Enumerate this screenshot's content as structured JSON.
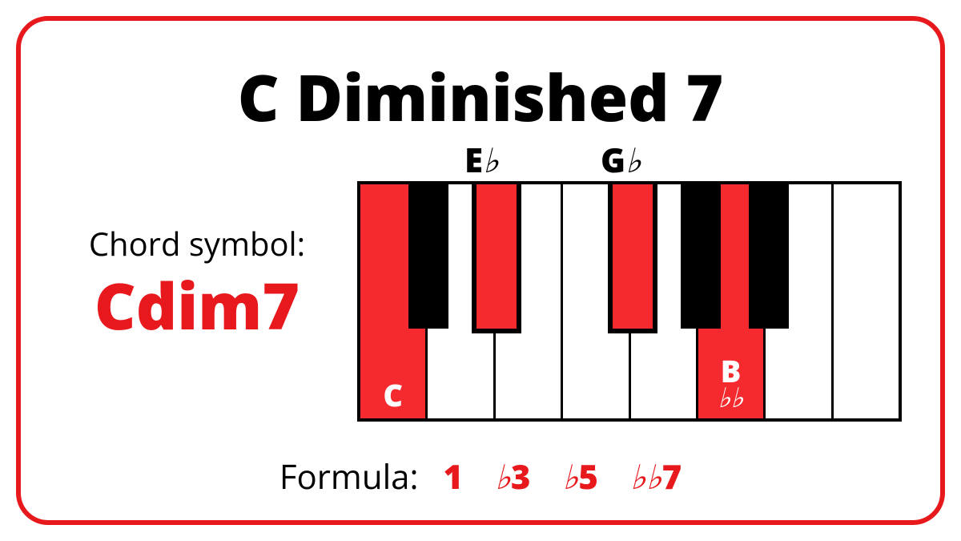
{
  "colors": {
    "accent": "#e7191d",
    "highlight": "#f42a2e",
    "black": "#000000",
    "white": "#ffffff"
  },
  "card": {
    "border_width": 6,
    "border_radius": 40
  },
  "title": "C Diminished 7",
  "chord_symbol": {
    "label": "Chord symbol:",
    "value": "Cdim7"
  },
  "keyboard": {
    "white_keys": [
      {
        "note": "C",
        "highlighted": true,
        "label": "C",
        "sub": ""
      },
      {
        "note": "D",
        "highlighted": false,
        "label": "",
        "sub": ""
      },
      {
        "note": "E",
        "highlighted": false,
        "label": "",
        "sub": ""
      },
      {
        "note": "F",
        "highlighted": false,
        "label": "",
        "sub": ""
      },
      {
        "note": "G",
        "highlighted": false,
        "label": "",
        "sub": ""
      },
      {
        "note": "A",
        "highlighted": true,
        "label": "B",
        "sub": "♭♭"
      },
      {
        "note": "B",
        "highlighted": false,
        "label": "",
        "sub": ""
      },
      {
        "note": "C2",
        "highlighted": false,
        "label": "",
        "sub": ""
      }
    ],
    "black_keys": [
      {
        "after_white_index": 0,
        "highlighted": false,
        "top_label": ""
      },
      {
        "after_white_index": 1,
        "highlighted": true,
        "top_label": "E♭"
      },
      {
        "after_white_index": 3,
        "highlighted": true,
        "top_label": "G♭"
      },
      {
        "after_white_index": 4,
        "highlighted": false,
        "top_label": ""
      },
      {
        "after_white_index": 5,
        "highlighted": false,
        "top_label": ""
      }
    ],
    "white_key_width": 85,
    "black_key_width": 50,
    "black_key_height": 180
  },
  "formula": {
    "label": "Formula:",
    "items": [
      "1",
      "♭3",
      "♭5",
      "♭♭7"
    ]
  }
}
